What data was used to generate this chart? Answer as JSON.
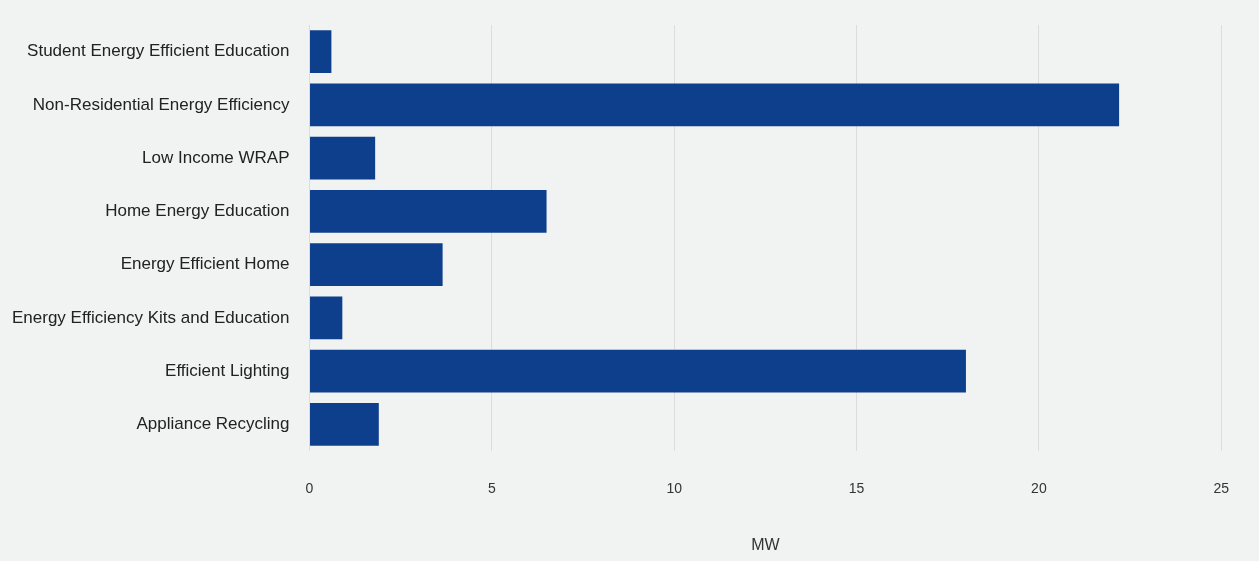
{
  "chart_data": {
    "type": "bar",
    "orientation": "horizontal",
    "xlabel": "MW",
    "categories": [
      "Student Energy Efficient Education",
      "Non-Residential Energy Efficiency",
      "Low Income WRAP",
      "Home Energy Education",
      "Energy Efficient Home",
      "Energy Efficiency Kits and Education",
      "Efficient Lighting",
      "Appliance Recycling"
    ],
    "values": [
      0.6,
      22.2,
      1.8,
      6.5,
      3.65,
      0.9,
      18.0,
      1.9
    ],
    "color": "#0e3f8c",
    "xlim": [
      0,
      25
    ],
    "xticks": [
      0,
      5,
      10,
      15,
      20,
      25
    ],
    "grid": "x"
  }
}
